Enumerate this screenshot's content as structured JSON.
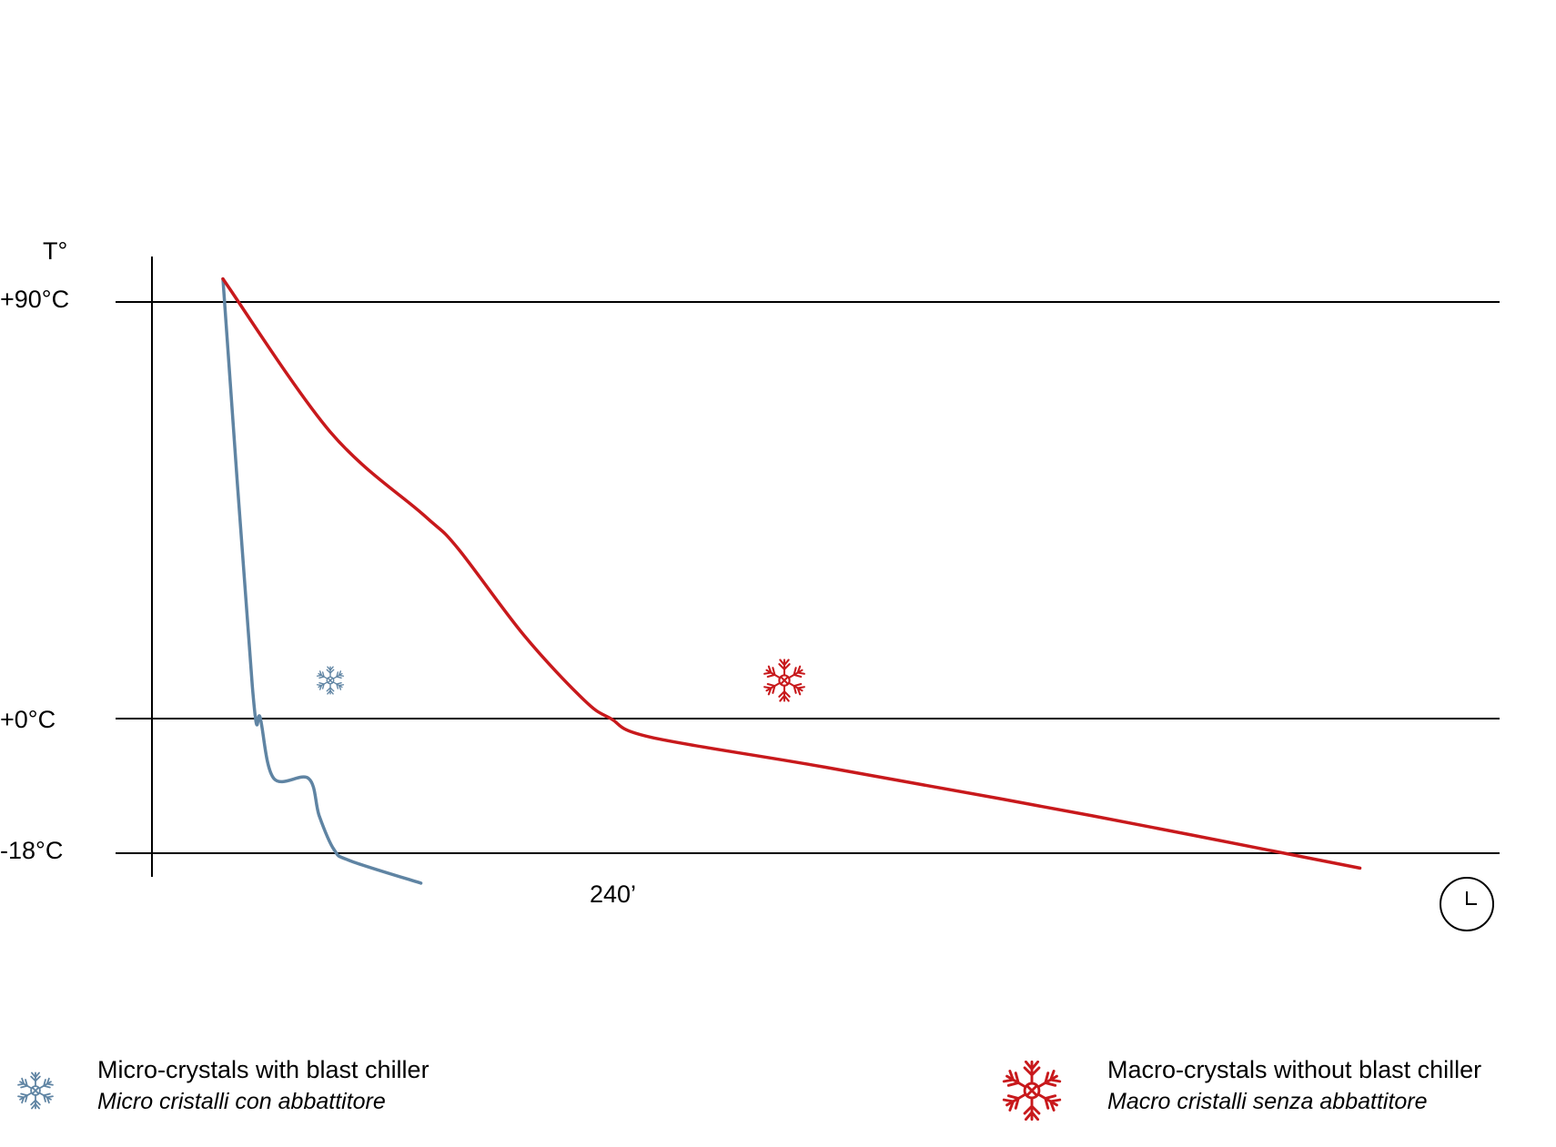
{
  "chart_data": {
    "type": "line",
    "ylabel": "T°",
    "y_ticks": [
      "+90°C",
      "+0°C",
      "-18°C"
    ],
    "x_annotation": "240’",
    "x_end_icon": "clock-icon",
    "series": [
      {
        "name": "Micro-crystals with blast chiller",
        "name_it": "Micro cristalli con abbattitore",
        "color": "#5f84a3",
        "icon": "snowflake-icon",
        "points": [
          [
            0,
            95
          ],
          [
            22,
            7
          ],
          [
            28,
            0
          ],
          [
            38,
            -8
          ],
          [
            64,
            -8
          ],
          [
            72,
            -13
          ],
          [
            83,
            -17.5
          ],
          [
            95,
            -19
          ],
          [
            148,
            -22
          ]
        ]
      },
      {
        "name": "Macro-crystals without blast chiller",
        "name_it": "Macro cristalli senza abbattitore",
        "color": "#c8191c",
        "icon": "snowflake-icon",
        "points": [
          [
            0,
            95
          ],
          [
            80,
            62
          ],
          [
            150,
            44
          ],
          [
            175,
            37
          ],
          [
            225,
            18
          ],
          [
            270,
            4
          ],
          [
            290,
            0
          ],
          [
            320,
            -2.5
          ],
          [
            450,
            -6.5
          ],
          [
            650,
            -13
          ],
          [
            850,
            -20
          ]
        ]
      }
    ]
  },
  "legend": {
    "micro": {
      "label": "Micro-crystals with blast chiller",
      "label_it": "Micro cristalli con abbattitore",
      "icon": "snowflake-icon",
      "color": "#5f84a3"
    },
    "macro": {
      "label": "Macro-crystals without blast chiller",
      "label_it": "Macro cristalli senza abbattitore",
      "icon": "snowflake-icon",
      "color": "#c8191c"
    }
  }
}
